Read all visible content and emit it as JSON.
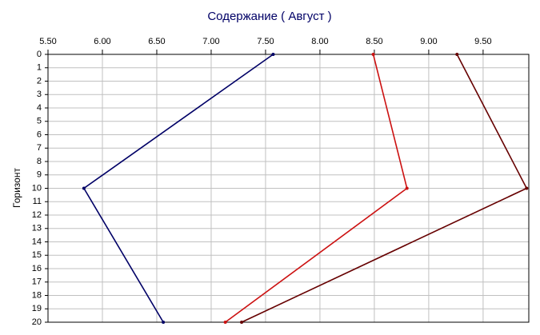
{
  "chart_data": {
    "type": "line",
    "title": "Содержание    ( Август )",
    "ylabel": "Горизонт",
    "y": [
      0,
      10,
      20
    ],
    "series": [
      {
        "color": "#000066",
        "values": [
          7.57,
          5.83,
          6.56
        ]
      },
      {
        "color": "#cc1111",
        "values": [
          8.49,
          8.8,
          7.13
        ]
      },
      {
        "color": "#660000",
        "values": [
          9.26,
          9.9,
          7.28
        ]
      }
    ],
    "xlim": [
      5.5,
      9.92
    ],
    "ylim": [
      0,
      20
    ],
    "y_inverted": true,
    "x_axis_position": "top",
    "grid": true,
    "xticks": [
      {
        "value": 5.5,
        "label": "5.50"
      },
      {
        "value": 6,
        "label": "6.00"
      },
      {
        "value": 6.5,
        "label": "6.50"
      },
      {
        "value": 7,
        "label": "7.00"
      },
      {
        "value": 7.5,
        "label": "7.50"
      },
      {
        "value": 8,
        "label": "8.00"
      },
      {
        "value": 8.5,
        "label": "8.50"
      },
      {
        "value": 9,
        "label": "9.00"
      },
      {
        "value": 9.5,
        "label": "9.50"
      }
    ],
    "yticks": [
      0,
      1,
      2,
      3,
      4,
      5,
      6,
      7,
      8,
      9,
      10,
      11,
      12,
      13,
      14,
      15,
      16,
      17,
      18,
      19,
      20
    ]
  }
}
